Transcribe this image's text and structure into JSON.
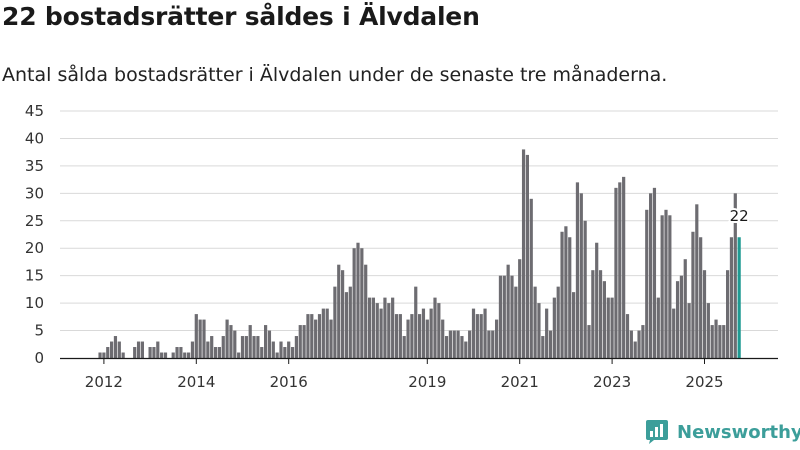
{
  "title": "22 bostadsrätter såldes i Älvdalen",
  "subtitle": "Antal sålda bostadsrätter i Älvdalen under de senaste tre månaderna.",
  "brand": "Newsworthy",
  "colors": {
    "bar": "#6d6c71",
    "highlight": "#1f9a92",
    "grid": "#d9d9d9",
    "axis": "#1a1a1a",
    "brand": "#3c9e9a"
  },
  "chart_data": {
    "type": "bar",
    "title": "22 bostadsrätter såldes i Älvdalen",
    "subtitle": "Antal sålda bostadsrätter i Älvdalen under de senaste tre månaderna.",
    "xlabel": "",
    "ylabel": "",
    "ylim": [
      0,
      45
    ],
    "yticks": [
      "0",
      "5",
      "10",
      "15",
      "20",
      "25",
      "30",
      "35",
      "40",
      "45"
    ],
    "x_start": {
      "year": 2011,
      "month": 9
    },
    "xticks": [
      {
        "label": "2012",
        "year": 2012,
        "month": 1
      },
      {
        "label": "2014",
        "year": 2014,
        "month": 1
      },
      {
        "label": "2016",
        "year": 2016,
        "month": 1
      },
      {
        "label": "2019",
        "year": 2019,
        "month": 1
      },
      {
        "label": "2021",
        "year": 2021,
        "month": 1
      },
      {
        "label": "2023",
        "year": 2023,
        "month": 1
      },
      {
        "label": "2025",
        "year": 2025,
        "month": 1
      }
    ],
    "values": [
      0,
      0,
      0,
      1,
      1,
      2,
      3,
      4,
      3,
      1,
      0,
      0,
      2,
      3,
      3,
      0,
      2,
      2,
      3,
      1,
      1,
      0,
      1,
      2,
      2,
      1,
      1,
      3,
      8,
      7,
      7,
      3,
      4,
      2,
      2,
      4,
      7,
      6,
      5,
      1,
      4,
      4,
      6,
      4,
      4,
      2,
      6,
      5,
      3,
      1,
      3,
      2,
      3,
      2,
      4,
      6,
      6,
      8,
      8,
      7,
      8,
      9,
      9,
      7,
      13,
      17,
      16,
      12,
      13,
      20,
      21,
      20,
      17,
      11,
      11,
      10,
      9,
      11,
      10,
      11,
      8,
      8,
      4,
      7,
      8,
      13,
      8,
      9,
      7,
      9,
      11,
      10,
      7,
      4,
      5,
      5,
      5,
      4,
      3,
      5,
      9,
      8,
      8,
      9,
      5,
      5,
      7,
      15,
      15,
      17,
      15,
      13,
      18,
      38,
      37,
      29,
      13,
      10,
      4,
      9,
      5,
      11,
      13,
      23,
      24,
      22,
      12,
      32,
      30,
      25,
      6,
      16,
      21,
      16,
      14,
      11,
      11,
      31,
      32,
      33,
      8,
      5,
      3,
      5,
      6,
      27,
      30,
      31,
      11,
      26,
      27,
      26,
      9,
      14,
      15,
      18,
      10,
      23,
      28,
      22,
      16,
      10,
      6,
      7,
      6,
      6,
      16,
      22,
      30,
      22
    ],
    "highlight": {
      "value": 22,
      "label": "22"
    }
  }
}
